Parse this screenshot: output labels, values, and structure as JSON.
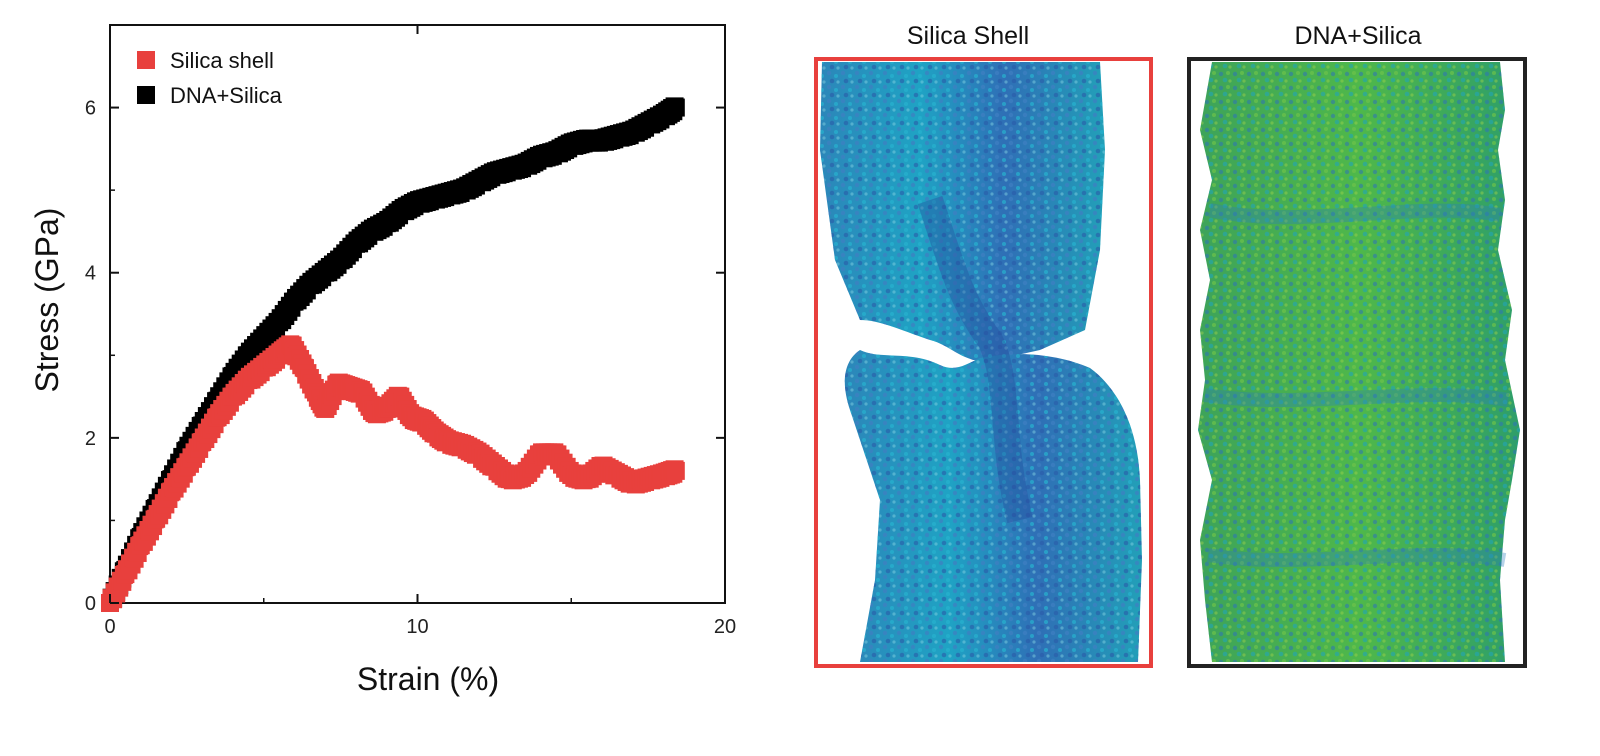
{
  "chart_data": {
    "type": "scatter",
    "xlabel": "Strain (%)",
    "ylabel": "Stress (GPa)",
    "xlim": [
      0,
      20
    ],
    "ylim": [
      0,
      7
    ],
    "xticks": [
      0,
      10,
      20
    ],
    "yticks": [
      0,
      2,
      4,
      6
    ],
    "grid": false,
    "legend_position": "top-left",
    "series": [
      {
        "name": "Silica shell",
        "color": "#e8403d",
        "x": [
          0,
          0.5,
          1,
          1.5,
          2,
          2.5,
          3,
          3.5,
          4,
          4.5,
          5,
          5.5,
          5.9,
          6.3,
          6.7,
          7.0,
          7.4,
          7.8,
          8.2,
          8.6,
          9.0,
          9.4,
          9.8,
          10.2,
          10.6,
          11.0,
          11.5,
          12.0,
          12.5,
          13.0,
          13.5,
          14.0,
          14.5,
          15.0,
          15.5,
          16.0,
          16.5,
          17.0,
          17.5,
          18.0,
          18.4
        ],
        "y": [
          0,
          0.35,
          0.7,
          1.02,
          1.35,
          1.65,
          1.95,
          2.25,
          2.5,
          2.7,
          2.85,
          3.0,
          3.12,
          2.85,
          2.55,
          2.35,
          2.65,
          2.6,
          2.55,
          2.3,
          2.35,
          2.5,
          2.25,
          2.2,
          2.05,
          1.95,
          1.9,
          1.8,
          1.65,
          1.5,
          1.55,
          1.8,
          1.8,
          1.55,
          1.5,
          1.65,
          1.55,
          1.45,
          1.5,
          1.55,
          1.6
        ]
      },
      {
        "name": "DNA+Silica",
        "color": "#000000",
        "x": [
          0,
          0.5,
          1,
          1.5,
          2,
          2.5,
          3,
          3.5,
          4,
          4.5,
          5,
          5.5,
          6,
          6.5,
          7,
          7.5,
          8,
          8.5,
          9,
          9.5,
          10,
          10.5,
          11,
          11.5,
          12,
          12.5,
          13,
          13.5,
          14,
          14.5,
          15,
          15.5,
          16,
          16.5,
          17,
          17.5,
          18,
          18.4
        ],
        "y": [
          0,
          0.4,
          0.8,
          1.15,
          1.5,
          1.85,
          2.15,
          2.45,
          2.75,
          3.0,
          3.2,
          3.4,
          3.65,
          3.85,
          4.0,
          4.15,
          4.35,
          4.5,
          4.6,
          4.75,
          4.85,
          4.9,
          4.95,
          5.0,
          5.1,
          5.2,
          5.25,
          5.3,
          5.4,
          5.45,
          5.55,
          5.6,
          5.6,
          5.65,
          5.7,
          5.8,
          5.9,
          6.0
        ]
      }
    ]
  },
  "panels": [
    {
      "title": "Silica Shell",
      "frame_color": "#e8403d"
    },
    {
      "title": "DNA+Silica",
      "frame_color": "#222222"
    }
  ]
}
